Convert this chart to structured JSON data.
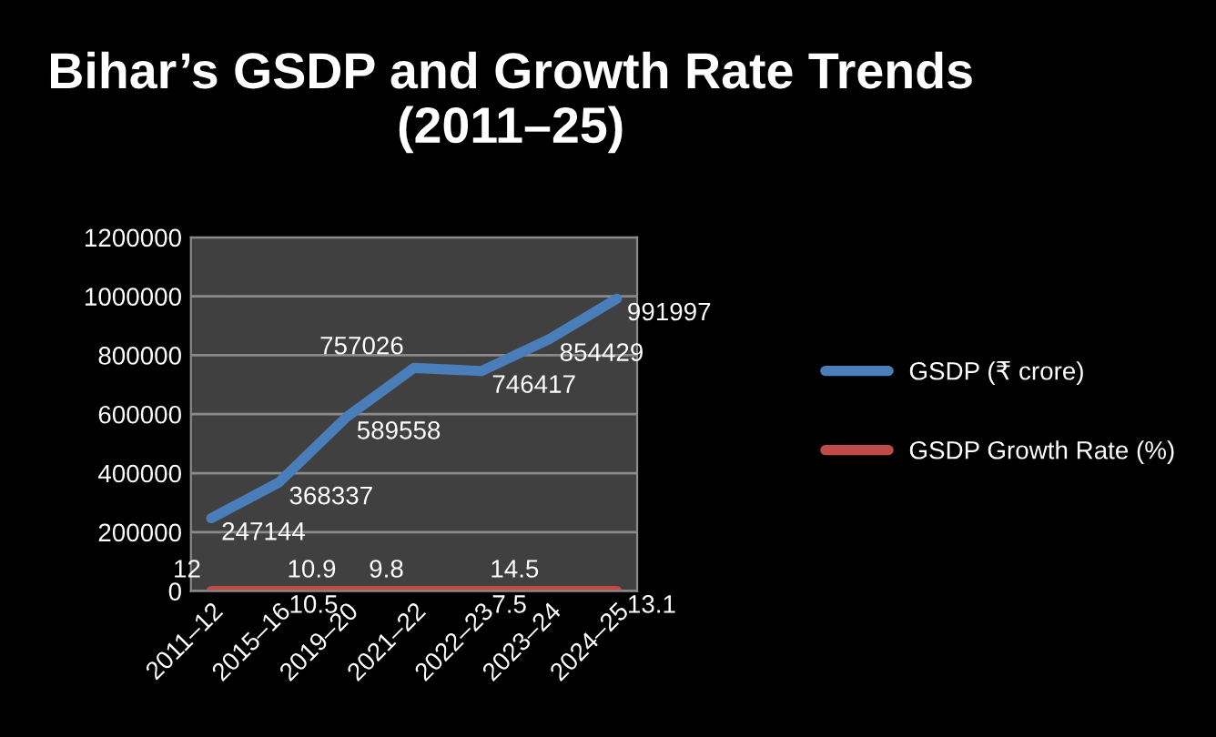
{
  "chart_data": {
    "type": "line",
    "title": "Bihar’s GSDP and Growth Rate Trends (2011–25)",
    "categories": [
      "2011–12",
      "2015–16",
      "2019–20",
      "2021–22",
      "2022–23",
      "2023–24",
      "2024–25"
    ],
    "series": [
      {
        "name": "GSDP (₹ crore)",
        "color": "#4a7ebb",
        "values": [
          247144,
          368337,
          589558,
          757026,
          746417,
          854429,
          991997
        ]
      },
      {
        "name": "GSDP Growth Rate (%)",
        "color": "#be4b48",
        "values": [
          12,
          10.5,
          10.9,
          9.8,
          7.5,
          14.5,
          13.1
        ]
      }
    ],
    "ylim": [
      0,
      1200000
    ],
    "yticks": [
      0,
      200000,
      400000,
      600000,
      800000,
      1000000,
      1200000
    ],
    "grid": "y",
    "legend": "right",
    "data_labels": true,
    "marker": "none",
    "line_style": "solid"
  }
}
